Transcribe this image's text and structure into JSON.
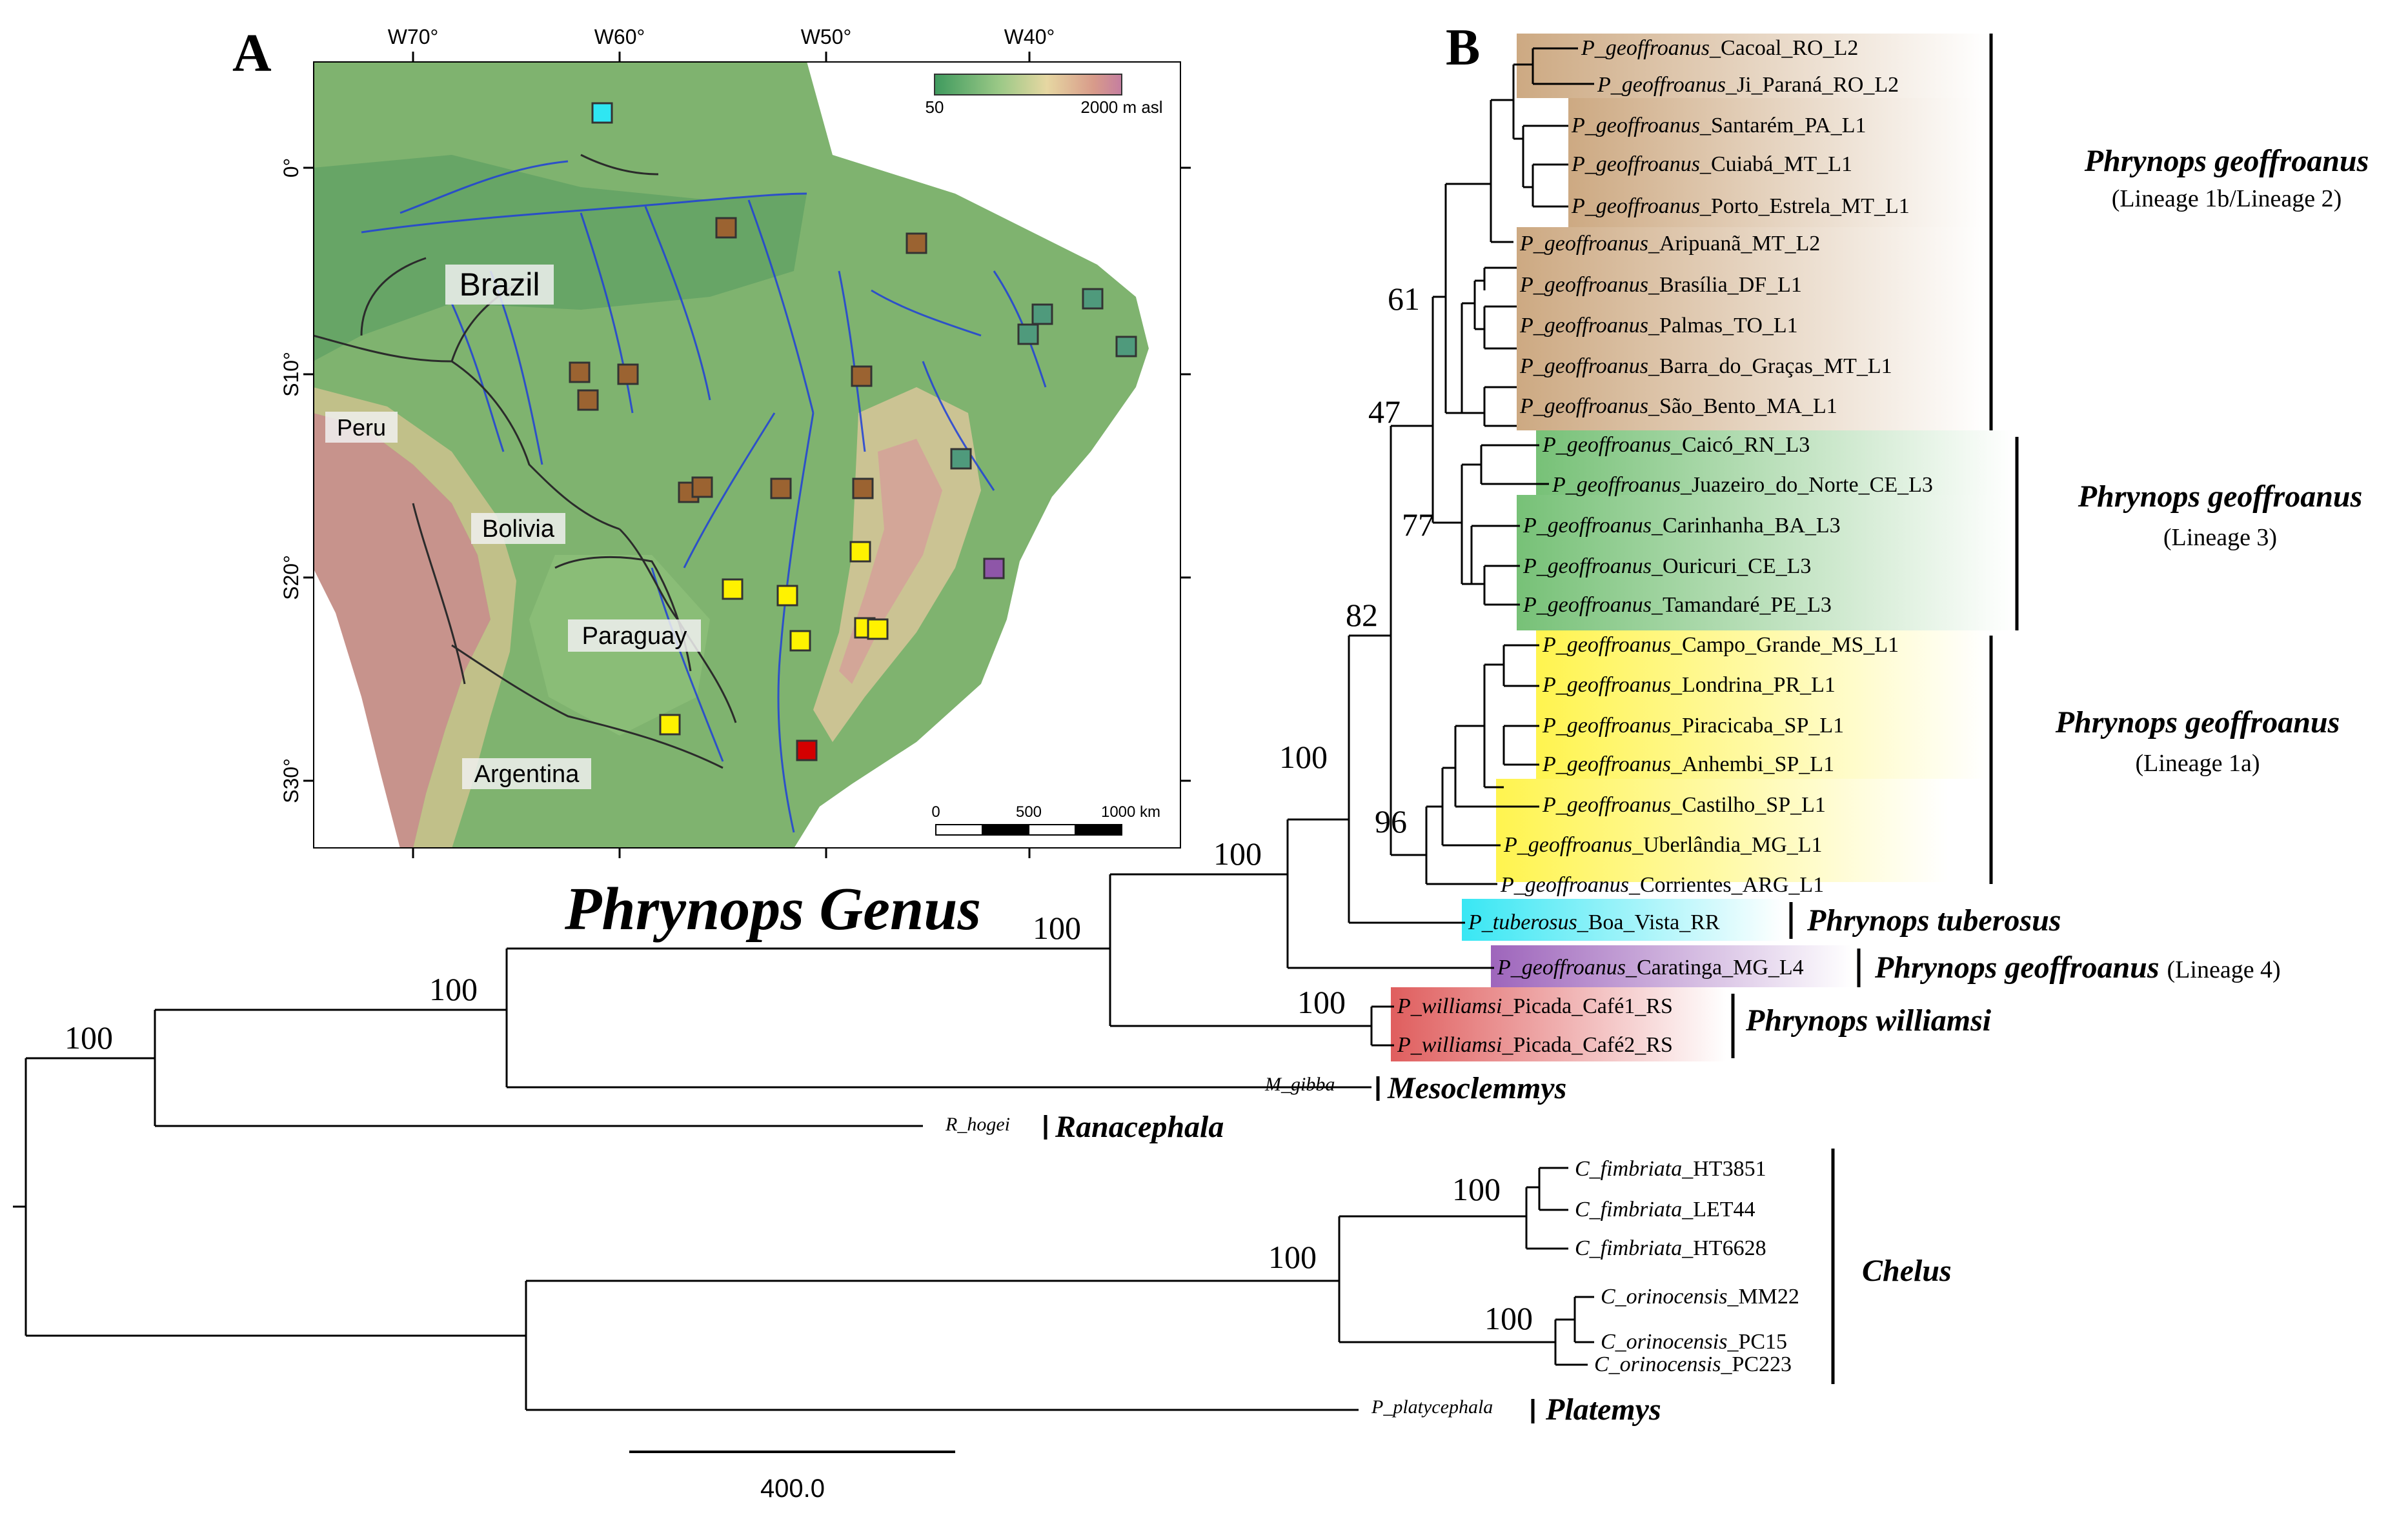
{
  "panel_a": {
    "letter": "A",
    "lon_ticks": [
      "W70°",
      "W60°",
      "W50°",
      "W40°"
    ],
    "lat_ticks": [
      "0°",
      "S10°",
      "S20°",
      "S30°"
    ],
    "elevation_legend": {
      "min": "50",
      "max": "2000 m asl"
    },
    "scalebar": {
      "t0": "0",
      "t1": "500",
      "t2": "1000 km"
    },
    "countries": {
      "brazil": "Brazil",
      "peru": "Peru",
      "bolivia": "Bolivia",
      "paraguay": "Paraguay",
      "argentina": "Argentina"
    },
    "marker_colors": {
      "brown": "#9b6331",
      "green": "#4f9a7c",
      "yellow": "#fff200",
      "cyan": "#2fe6f2",
      "purple": "#8e56a8",
      "red": "#d40000"
    }
  },
  "panel_b": {
    "letter": "B",
    "genus_title": "Phrynops Genus",
    "scale_label": "400.0",
    "tips": [
      {
        "sp": "P_geoffroanus",
        "rest": "_Cacoal_RO_L2"
      },
      {
        "sp": "P_geoffroanus",
        "rest": "_Ji_Paraná_RO_L2"
      },
      {
        "sp": "P_geoffroanus",
        "rest": "_Santarém_PA_L1"
      },
      {
        "sp": "P_geoffroanus",
        "rest": "_Cuiabá_MT_L1"
      },
      {
        "sp": "P_geoffroanus",
        "rest": "_Porto_Estrela_MT_L1"
      },
      {
        "sp": "P_geoffroanus",
        "rest": "_Aripuanã_MT_L2"
      },
      {
        "sp": "P_geoffroanus",
        "rest": "_Brasília_DF_L1"
      },
      {
        "sp": "P_geoffroanus",
        "rest": "_Palmas_TO_L1"
      },
      {
        "sp": "P_geoffroanus",
        "rest": "_Barra_do_Graças_MT_L1"
      },
      {
        "sp": "P_geoffroanus",
        "rest": "_São_Bento_MA_L1"
      },
      {
        "sp": "P_geoffroanus",
        "rest": "_Caicó_RN_L3"
      },
      {
        "sp": "P_geoffroanus",
        "rest": "_Juazeiro_do_Norte_CE_L3"
      },
      {
        "sp": "P_geoffroanus",
        "rest": "_Carinhanha_BA_L3"
      },
      {
        "sp": "P_geoffroanus",
        "rest": "_Ouricuri_CE_L3"
      },
      {
        "sp": "P_geoffroanus",
        "rest": "_Tamandaré_PE_L3"
      },
      {
        "sp": "P_geoffroanus",
        "rest": "_Campo_Grande_MS_L1"
      },
      {
        "sp": "P_geoffroanus",
        "rest": "_Londrina_PR_L1"
      },
      {
        "sp": "P_geoffroanus",
        "rest": "_Piracicaba_SP_L1"
      },
      {
        "sp": "P_geoffroanus",
        "rest": "_Anhembi_SP_L1"
      },
      {
        "sp": "P_geoffroanus",
        "rest": "_Castilho_SP_L1"
      },
      {
        "sp": "P_geoffroanus",
        "rest": "_Uberlândia_MG_L1"
      },
      {
        "sp": "P_geoffroanus",
        "rest": "_Corrientes_ARG_L1"
      },
      {
        "sp": "P_tuberosus",
        "rest": "_Boa_Vista_RR"
      },
      {
        "sp": "P_geoffroanus",
        "rest": "_Caratinga_MG_L4"
      },
      {
        "sp": "P_williamsi",
        "rest": "_Picada_Café1_RS"
      },
      {
        "sp": "P_williamsi",
        "rest": "_Picada_Café2_RS"
      },
      {
        "sp": "M_gibba",
        "rest": ""
      },
      {
        "sp": "R_hogei",
        "rest": ""
      },
      {
        "sp": "C_fimbriata",
        "rest": "_HT3851"
      },
      {
        "sp": "C_fimbriata",
        "rest": "_LET44"
      },
      {
        "sp": "C_fimbriata",
        "rest": "_HT6628"
      },
      {
        "sp": "C_orinocensis",
        "rest": "_MM22"
      },
      {
        "sp": "C_orinocensis",
        "rest": "_PC15"
      },
      {
        "sp": "C_orinocensis",
        "rest": "_PC223"
      },
      {
        "sp": "P_platycephala",
        "rest": ""
      }
    ],
    "support": [
      "61",
      "47",
      "77",
      "82",
      "96",
      "100",
      "100",
      "100",
      "100",
      "100",
      "100",
      "100",
      "100"
    ],
    "clades": {
      "lin1b2": {
        "name": "Phrynops geoffroanus",
        "sub": "(Lineage 1b/Lineage 2)"
      },
      "lin3": {
        "name": "Phrynops geoffroanus",
        "sub": "(Lineage 3)"
      },
      "lin1a": {
        "name": "Phrynops geoffroanus",
        "sub": "(Lineage 1a)"
      },
      "tuberosus": {
        "name": "Phrynops tuberosus"
      },
      "lin4": {
        "name": "Phrynops geoffroanus",
        "sub": "(Lineage 4)"
      },
      "williamsi": {
        "name": "Phrynops williamsi"
      },
      "mesoclemmys": {
        "name": "Mesoclemmys"
      },
      "ranacephala": {
        "name": "Ranacephala"
      },
      "chelus": {
        "name": "Chelus"
      },
      "platemys": {
        "name": "Platemys"
      }
    },
    "highlight_colors": {
      "brown": "#c8a47c",
      "green": "#6fbf6f",
      "yellow": "#fff34a",
      "cyan": "#33e8f5",
      "purple": "#9b63b8",
      "red": "#e06262"
    }
  }
}
